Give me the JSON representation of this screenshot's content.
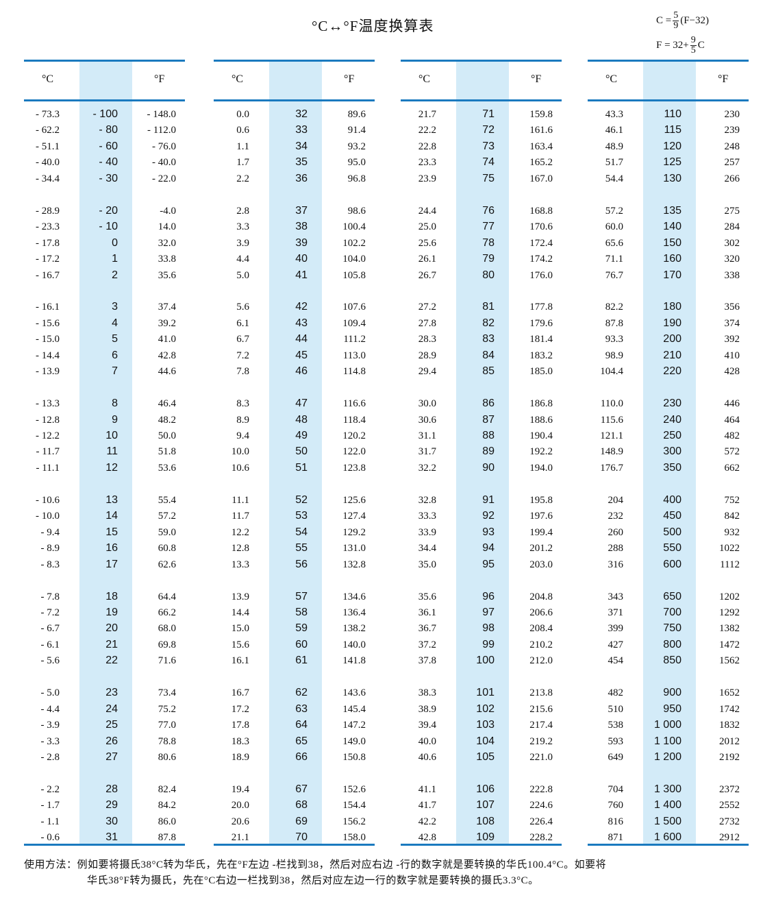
{
  "title": "°C↔°F温度换算表",
  "formula1": {
    "lhs": "C =",
    "num": "5",
    "den": "9",
    "rhs": "(F−32)"
  },
  "formula2": {
    "lhs": "F = 32+",
    "num": "9",
    "den": "5",
    "rhs": "C"
  },
  "headers": {
    "c": "°C",
    "f": "°F"
  },
  "colors": {
    "rule": "#1a7abf",
    "mid_fill": "#d3ebf8"
  },
  "panels": [
    {
      "c": [
        "- 73.3",
        "- 62.2",
        "- 51.1",
        "- 40.0",
        "- 34.4",
        "- 28.9",
        "- 23.3",
        "- 17.8",
        "- 17.2",
        "- 16.7",
        "- 16.1",
        "- 15.6",
        "- 15.0",
        "- 14.4",
        "- 13.9",
        "- 13.3",
        "- 12.8",
        "- 12.2",
        "- 11.7",
        "- 11.1",
        "- 10.6",
        "- 10.0",
        "- 9.4",
        "- 8.9",
        "- 8.3",
        "- 7.8",
        "- 7.2",
        "- 6.7",
        "- 6.1",
        "- 5.6",
        "- 5.0",
        "- 4.4",
        "- 3.9",
        "- 3.3",
        "- 2.8",
        "- 2.2",
        "- 1.7",
        "- 1.1",
        "- 0.6"
      ],
      "mid": [
        "- 100",
        "- 80",
        "- 60",
        "- 40",
        "- 30",
        "- 20",
        "- 10",
        "0",
        "1",
        "2",
        "3",
        "4",
        "5",
        "6",
        "7",
        "8",
        "9",
        "10",
        "11",
        "12",
        "13",
        "14",
        "15",
        "16",
        "17",
        "18",
        "19",
        "20",
        "21",
        "22",
        "23",
        "24",
        "25",
        "26",
        "27",
        "28",
        "29",
        "30",
        "31"
      ],
      "f": [
        "- 148.0",
        "- 112.0",
        "- 76.0",
        "- 40.0",
        "- 22.0",
        "-4.0",
        "14.0",
        "32.0",
        "33.8",
        "35.6",
        "37.4",
        "39.2",
        "41.0",
        "42.8",
        "44.6",
        "46.4",
        "48.2",
        "50.0",
        "51.8",
        "53.6",
        "55.4",
        "57.2",
        "59.0",
        "60.8",
        "62.6",
        "64.4",
        "66.2",
        "68.0",
        "69.8",
        "71.6",
        "73.4",
        "75.2",
        "77.0",
        "78.8",
        "80.6",
        "82.4",
        "84.2",
        "86.0",
        "87.8"
      ]
    },
    {
      "c": [
        "0.0",
        "0.6",
        "1.1",
        "1.7",
        "2.2",
        "2.8",
        "3.3",
        "3.9",
        "4.4",
        "5.0",
        "5.6",
        "6.1",
        "6.7",
        "7.2",
        "7.8",
        "8.3",
        "8.9",
        "9.4",
        "10.0",
        "10.6",
        "11.1",
        "11.7",
        "12.2",
        "12.8",
        "13.3",
        "13.9",
        "14.4",
        "15.0",
        "15.6",
        "16.1",
        "16.7",
        "17.2",
        "17.8",
        "18.3",
        "18.9",
        "19.4",
        "20.0",
        "20.6",
        "21.1"
      ],
      "mid": [
        "32",
        "33",
        "34",
        "35",
        "36",
        "37",
        "38",
        "39",
        "40",
        "41",
        "42",
        "43",
        "44",
        "45",
        "46",
        "47",
        "48",
        "49",
        "50",
        "51",
        "52",
        "53",
        "54",
        "55",
        "56",
        "57",
        "58",
        "59",
        "60",
        "61",
        "62",
        "63",
        "64",
        "65",
        "66",
        "67",
        "68",
        "69",
        "70"
      ],
      "f": [
        "89.6",
        "91.4",
        "93.2",
        "95.0",
        "96.8",
        "98.6",
        "100.4",
        "102.2",
        "104.0",
        "105.8",
        "107.6",
        "109.4",
        "111.2",
        "113.0",
        "114.8",
        "116.6",
        "118.4",
        "120.2",
        "122.0",
        "123.8",
        "125.6",
        "127.4",
        "129.2",
        "131.0",
        "132.8",
        "134.6",
        "136.4",
        "138.2",
        "140.0",
        "141.8",
        "143.6",
        "145.4",
        "147.2",
        "149.0",
        "150.8",
        "152.6",
        "154.4",
        "156.2",
        "158.0"
      ]
    },
    {
      "c": [
        "21.7",
        "22.2",
        "22.8",
        "23.3",
        "23.9",
        "24.4",
        "25.0",
        "25.6",
        "26.1",
        "26.7",
        "27.2",
        "27.8",
        "28.3",
        "28.9",
        "29.4",
        "30.0",
        "30.6",
        "31.1",
        "31.7",
        "32.2",
        "32.8",
        "33.3",
        "33.9",
        "34.4",
        "35.0",
        "35.6",
        "36.1",
        "36.7",
        "37.2",
        "37.8",
        "38.3",
        "38.9",
        "39.4",
        "40.0",
        "40.6",
        "41.1",
        "41.7",
        "42.2",
        "42.8"
      ],
      "mid": [
        "71",
        "72",
        "73",
        "74",
        "75",
        "76",
        "77",
        "78",
        "79",
        "80",
        "81",
        "82",
        "83",
        "84",
        "85",
        "86",
        "87",
        "88",
        "89",
        "90",
        "91",
        "92",
        "93",
        "94",
        "95",
        "96",
        "97",
        "98",
        "99",
        "100",
        "101",
        "102",
        "103",
        "104",
        "105",
        "106",
        "107",
        "108",
        "109"
      ],
      "f": [
        "159.8",
        "161.6",
        "163.4",
        "165.2",
        "167.0",
        "168.8",
        "170.6",
        "172.4",
        "174.2",
        "176.0",
        "177.8",
        "179.6",
        "181.4",
        "183.2",
        "185.0",
        "186.8",
        "188.6",
        "190.4",
        "192.2",
        "194.0",
        "195.8",
        "197.6",
        "199.4",
        "201.2",
        "203.0",
        "204.8",
        "206.6",
        "208.4",
        "210.2",
        "212.0",
        "213.8",
        "215.6",
        "217.4",
        "219.2",
        "221.0",
        "222.8",
        "224.6",
        "226.4",
        "228.2"
      ]
    },
    {
      "c": [
        "43.3",
        "46.1",
        "48.9",
        "51.7",
        "54.4",
        "57.2",
        "60.0",
        "65.6",
        "71.1",
        "76.7",
        "82.2",
        "87.8",
        "93.3",
        "98.9",
        "104.4",
        "110.0",
        "115.6",
        "121.1",
        "148.9",
        "176.7",
        "204",
        "232",
        "260",
        "288",
        "316",
        "343",
        "371",
        "399",
        "427",
        "454",
        "482",
        "510",
        "538",
        "593",
        "649",
        "704",
        "760",
        "816",
        "871"
      ],
      "mid": [
        "110",
        "115",
        "120",
        "125",
        "130",
        "135",
        "140",
        "150",
        "160",
        "170",
        "180",
        "190",
        "200",
        "210",
        "220",
        "230",
        "240",
        "250",
        "300",
        "350",
        "400",
        "450",
        "500",
        "550",
        "600",
        "650",
        "700",
        "750",
        "800",
        "850",
        "900",
        "950",
        "1 000",
        "1 100",
        "1 200",
        "1 300",
        "1 400",
        "1 500",
        "1 600"
      ],
      "f": [
        "230",
        "239",
        "248",
        "257",
        "266",
        "275",
        "284",
        "302",
        "320",
        "338",
        "356",
        "374",
        "392",
        "410",
        "428",
        "446",
        "464",
        "482",
        "572",
        "662",
        "752",
        "842",
        "932",
        "1022",
        "1112",
        "1202",
        "1292",
        "1382",
        "1472",
        "1562",
        "1652",
        "1742",
        "1832",
        "2012",
        "2192",
        "2372",
        "2552",
        "2732",
        "2912"
      ]
    }
  ],
  "footer": {
    "line1": "使用方法：例如要将摄氏38°C转为华氏，先在°F左边 -栏找到38，然后对应右边 -行的数字就是要转换的华氏100.4°C。如要将",
    "line2": "华氏38°F转为摄氏，先在°C右边一栏找到38，然后对应左边一行的数字就是要转换的摄氏3.3°C。"
  }
}
